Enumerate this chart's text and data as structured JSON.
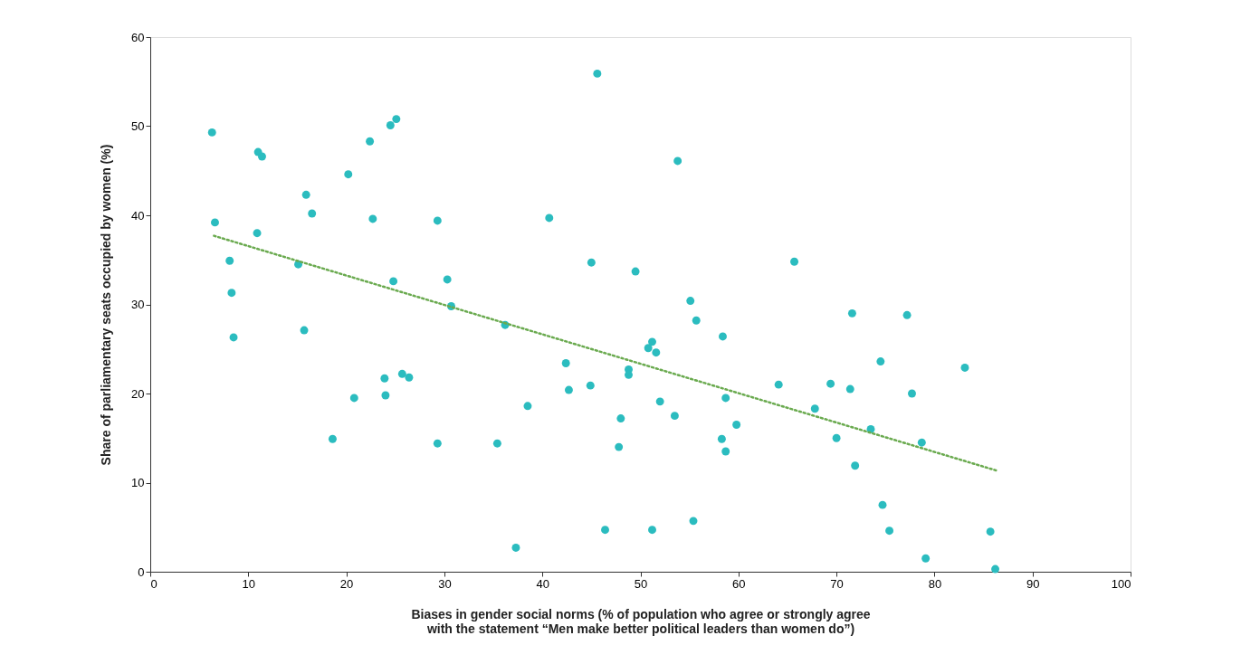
{
  "chart_data": {
    "type": "scatter",
    "xlabel": "Biases in gender social norms (% of population who agree or strongly agree\nwith the statement “Men make better political leaders than women do”)",
    "ylabel": "Share of parliamentary seats occupied by women (%)",
    "xlim": [
      0,
      100
    ],
    "xticks": [
      0,
      10,
      20,
      30,
      40,
      50,
      60,
      70,
      80,
      90,
      100
    ],
    "ylim": [
      0,
      60
    ],
    "yticks": [
      0,
      10,
      20,
      30,
      40,
      50,
      60
    ],
    "grid": false,
    "series": [
      {
        "marker": "circle",
        "color": "#2bbcbf",
        "x": [
          6.3,
          6.6,
          8.1,
          8.3,
          8.5,
          11.0,
          11.4,
          10.9,
          15.1,
          15.9,
          16.5,
          15.7,
          18.6,
          20.2,
          20.8,
          22.4,
          22.7,
          24.5,
          25.1,
          24.8,
          23.9,
          24.0,
          25.7,
          26.4,
          29.3,
          29.3,
          30.3,
          30.7,
          35.4,
          36.2,
          37.3,
          38.5,
          40.7,
          42.4,
          42.7,
          45.0,
          44.9,
          45.6,
          46.4,
          47.8,
          48.0,
          48.8,
          48.8,
          49.5,
          50.8,
          51.2,
          51.6,
          51.2,
          52.0,
          53.5,
          53.8,
          55.1,
          55.7,
          55.4,
          58.4,
          58.3,
          58.7,
          58.7,
          59.8,
          64.1,
          65.7,
          67.8,
          69.4,
          70.0,
          71.4,
          71.6,
          71.9,
          73.5,
          74.5,
          74.7,
          75.4,
          77.2,
          77.7,
          78.7,
          79.1,
          83.1,
          85.7,
          86.2
        ],
        "values": [
          49.3,
          39.2,
          34.9,
          31.3,
          26.3,
          47.1,
          46.6,
          38.0,
          34.5,
          42.3,
          40.2,
          27.1,
          14.9,
          44.6,
          19.5,
          48.3,
          39.6,
          50.1,
          50.8,
          32.6,
          21.7,
          19.8,
          22.2,
          21.8,
          39.4,
          14.4,
          32.8,
          29.8,
          14.4,
          27.7,
          2.7,
          18.6,
          39.7,
          23.4,
          20.4,
          34.7,
          20.9,
          55.9,
          4.7,
          14.0,
          17.2,
          22.7,
          22.1,
          33.7,
          25.1,
          25.8,
          24.6,
          4.7,
          19.1,
          17.5,
          46.1,
          30.4,
          28.2,
          5.7,
          26.4,
          14.9,
          19.5,
          13.5,
          16.5,
          21.0,
          34.8,
          18.3,
          21.1,
          15.0,
          20.5,
          29.0,
          11.9,
          16.0,
          23.6,
          7.5,
          4.6,
          28.8,
          20.0,
          14.5,
          1.5,
          22.9,
          4.5,
          0.3
        ]
      },
      {
        "type": "line",
        "color": "#6aaa4f",
        "line_style": "dotted",
        "x": [
          6.5,
          86.5
        ],
        "values": [
          37.7,
          11.3
        ]
      }
    ]
  }
}
